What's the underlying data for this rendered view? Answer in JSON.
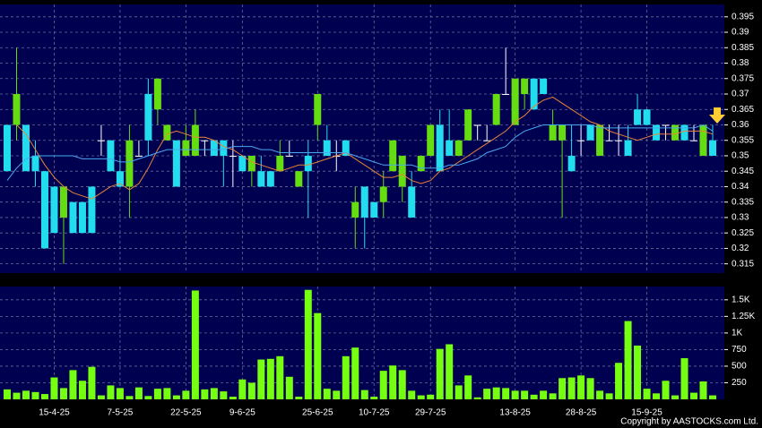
{
  "chart_data": [
    {
      "type": "candlestick",
      "categories": [
        null,
        null,
        null,
        null,
        null,
        "15-4-25",
        null,
        null,
        null,
        null,
        null,
        null,
        "7-5-25",
        null,
        null,
        null,
        null,
        null,
        null,
        "22-5-25",
        null,
        null,
        null,
        null,
        null,
        "9-6-25",
        null,
        null,
        null,
        null,
        null,
        null,
        null,
        "25-6-25",
        null,
        null,
        null,
        null,
        null,
        "10-7-25",
        null,
        null,
        null,
        null,
        null,
        "29-7-25",
        null,
        null,
        null,
        null,
        null,
        null,
        null,
        null,
        "13-8-25",
        null,
        null,
        null,
        null,
        null,
        null,
        "28-8-25",
        null,
        null,
        null,
        null,
        null,
        null,
        "15-9-25",
        null,
        null,
        null,
        null,
        null,
        null,
        null
      ],
      "open": [
        0.36,
        0.36,
        0.36,
        0.35,
        0.345,
        0.34,
        0.33,
        0.335,
        0.335,
        0.34,
        0.355,
        0.355,
        0.345,
        0.34,
        0.35,
        0.37,
        0.365,
        0.355,
        0.355,
        0.35,
        0.35,
        0.355,
        0.355,
        0.355,
        0.35,
        0.35,
        0.345,
        0.345,
        0.345,
        0.345,
        0.35,
        0.34,
        0.35,
        0.36,
        0.355,
        0.35,
        0.355,
        0.33,
        0.34,
        0.335,
        0.335,
        0.345,
        0.34,
        0.34,
        0.345,
        0.35,
        0.36,
        0.355,
        0.35,
        0.355,
        0.36,
        0.355,
        0.36,
        0.37,
        0.36,
        0.37,
        0.375,
        0.375,
        0.355,
        0.355,
        0.35,
        0.355,
        0.36,
        0.35,
        0.355,
        0.355,
        0.355,
        0.365,
        0.365,
        0.36,
        0.36,
        0.355,
        0.36,
        0.355,
        0.35,
        0.355
      ],
      "high": [
        0.36,
        0.385,
        0.36,
        0.355,
        0.345,
        0.34,
        0.34,
        0.335,
        0.335,
        0.34,
        0.36,
        0.355,
        0.35,
        0.36,
        0.355,
        0.375,
        0.375,
        0.36,
        0.355,
        0.36,
        0.365,
        0.355,
        0.355,
        0.355,
        0.355,
        0.35,
        0.35,
        0.35,
        0.345,
        0.355,
        0.355,
        0.345,
        0.355,
        0.37,
        0.36,
        0.355,
        0.355,
        0.34,
        0.34,
        0.335,
        0.345,
        0.355,
        0.35,
        0.345,
        0.35,
        0.36,
        0.365,
        0.365,
        0.355,
        0.365,
        0.36,
        0.36,
        0.37,
        0.385,
        0.375,
        0.375,
        0.375,
        0.375,
        0.365,
        0.36,
        0.36,
        0.36,
        0.36,
        0.36,
        0.36,
        0.36,
        0.36,
        0.37,
        0.365,
        0.36,
        0.36,
        0.36,
        0.36,
        0.36,
        0.36,
        0.36
      ],
      "low": [
        0.345,
        0.355,
        0.345,
        0.34,
        0.32,
        0.325,
        0.315,
        0.325,
        0.325,
        0.325,
        0.35,
        0.345,
        0.34,
        0.33,
        0.35,
        0.35,
        0.36,
        0.355,
        0.34,
        0.35,
        0.35,
        0.35,
        0.35,
        0.34,
        0.34,
        0.345,
        0.34,
        0.34,
        0.34,
        0.345,
        0.35,
        0.34,
        0.33,
        0.355,
        0.35,
        0.345,
        0.35,
        0.32,
        0.32,
        0.33,
        0.33,
        0.345,
        0.335,
        0.33,
        0.345,
        0.35,
        0.345,
        0.35,
        0.35,
        0.355,
        0.355,
        0.355,
        0.36,
        0.37,
        0.36,
        0.365,
        0.365,
        0.37,
        0.355,
        0.33,
        0.345,
        0.35,
        0.355,
        0.35,
        0.355,
        0.35,
        0.35,
        0.36,
        0.36,
        0.355,
        0.355,
        0.355,
        0.355,
        0.355,
        0.35,
        0.35
      ],
      "close": [
        0.345,
        0.37,
        0.345,
        0.345,
        0.32,
        0.325,
        0.34,
        0.325,
        0.325,
        0.325,
        0.355,
        0.345,
        0.34,
        0.355,
        0.35,
        0.355,
        0.375,
        0.36,
        0.34,
        0.355,
        0.36,
        0.355,
        0.35,
        0.35,
        0.35,
        0.345,
        0.35,
        0.34,
        0.34,
        0.35,
        0.35,
        0.345,
        0.345,
        0.37,
        0.35,
        0.35,
        0.35,
        0.335,
        0.33,
        0.33,
        0.34,
        0.355,
        0.35,
        0.33,
        0.35,
        0.36,
        0.345,
        0.35,
        0.355,
        0.365,
        0.36,
        0.355,
        0.37,
        0.37,
        0.375,
        0.375,
        0.365,
        0.37,
        0.36,
        0.36,
        0.345,
        0.355,
        0.355,
        0.36,
        0.355,
        0.355,
        0.35,
        0.36,
        0.36,
        0.355,
        0.36,
        0.36,
        0.355,
        0.355,
        0.36,
        0.35
      ],
      "up_color": "#66dd11",
      "down_color": "#22ddee",
      "flat_color": "#ffffff",
      "series": [
        {
          "color": "#e8843a",
          "values": [
            null,
            0.36,
            0.357,
            0.352,
            0.347,
            0.343,
            0.34,
            0.338,
            0.337,
            0.336,
            0.338,
            0.34,
            0.341,
            0.339,
            0.341,
            0.346,
            0.352,
            0.357,
            0.358,
            0.357,
            0.356,
            0.356,
            0.355,
            0.353,
            0.352,
            0.35,
            0.348,
            0.347,
            0.346,
            0.345,
            0.346,
            0.347,
            0.347,
            0.348,
            0.349,
            0.35,
            0.351,
            0.349,
            0.347,
            0.345,
            0.343,
            0.343,
            0.344,
            0.342,
            0.341,
            0.342,
            0.345,
            0.346,
            0.348,
            0.35,
            0.352,
            0.354,
            0.356,
            0.358,
            0.361,
            0.363,
            0.366,
            0.368,
            0.369,
            0.367,
            0.365,
            0.363,
            0.361,
            0.36,
            0.358,
            0.357,
            0.356,
            0.355,
            0.356,
            0.357,
            0.357,
            0.357,
            0.358,
            0.358,
            0.358,
            0.357
          ]
        },
        {
          "color": "#4aa8f0",
          "values": [
            0.342,
            0.346,
            0.349,
            0.35,
            0.35,
            0.35,
            0.35,
            0.35,
            0.349,
            0.349,
            0.349,
            0.349,
            0.348,
            0.348,
            0.349,
            0.35,
            0.351,
            0.352,
            0.352,
            0.352,
            0.352,
            0.352,
            0.352,
            0.352,
            0.353,
            0.353,
            0.353,
            0.352,
            0.352,
            0.351,
            0.351,
            0.351,
            0.351,
            0.351,
            0.351,
            0.351,
            0.351,
            0.35,
            0.349,
            0.348,
            0.347,
            0.347,
            0.347,
            0.347,
            0.346,
            0.346,
            0.346,
            0.347,
            0.347,
            0.348,
            0.349,
            0.351,
            0.352,
            0.353,
            0.356,
            0.358,
            0.359,
            0.36,
            0.36,
            0.36,
            0.36,
            0.36,
            0.36,
            0.359,
            0.359,
            0.359,
            0.359,
            0.359,
            0.359,
            0.359,
            0.359,
            0.359,
            0.359,
            0.359,
            0.36,
            0.358
          ]
        }
      ],
      "ylim": [
        0.312,
        0.399
      ],
      "yticks": [
        0.315,
        0.32,
        0.325,
        0.33,
        0.335,
        0.34,
        0.345,
        0.35,
        0.355,
        0.36,
        0.365,
        0.37,
        0.375,
        0.38,
        0.385,
        0.39,
        0.395
      ],
      "grid": true
    },
    {
      "type": "bar",
      "color": "#77ff11",
      "values": [
        150,
        100,
        130,
        110,
        80,
        330,
        170,
        440,
        280,
        490,
        60,
        210,
        170,
        50,
        180,
        50,
        160,
        170,
        60,
        130,
        1640,
        150,
        170,
        120,
        40,
        300,
        250,
        600,
        610,
        650,
        340,
        40,
        1650,
        1300,
        160,
        130,
        650,
        780,
        140,
        40,
        430,
        510,
        440,
        130,
        60,
        70,
        760,
        830,
        210,
        360,
        30,
        160,
        180,
        170,
        130,
        130,
        70,
        130,
        90,
        320,
        330,
        360,
        320,
        130,
        90,
        550,
        1180,
        810,
        160,
        90,
        280,
        60,
        620,
        100,
        270,
        60
      ],
      "ylim": [
        0,
        1700
      ],
      "yticks": [
        250,
        500,
        750,
        {
          "value": 1000,
          "label": "1K"
        },
        {
          "value": 1250,
          "label": "1.25K"
        },
        {
          "value": 1500,
          "label": "1.5K"
        }
      ],
      "grid": true
    }
  ],
  "copyright": "Copyright by AASTOCKS.com Ltd."
}
